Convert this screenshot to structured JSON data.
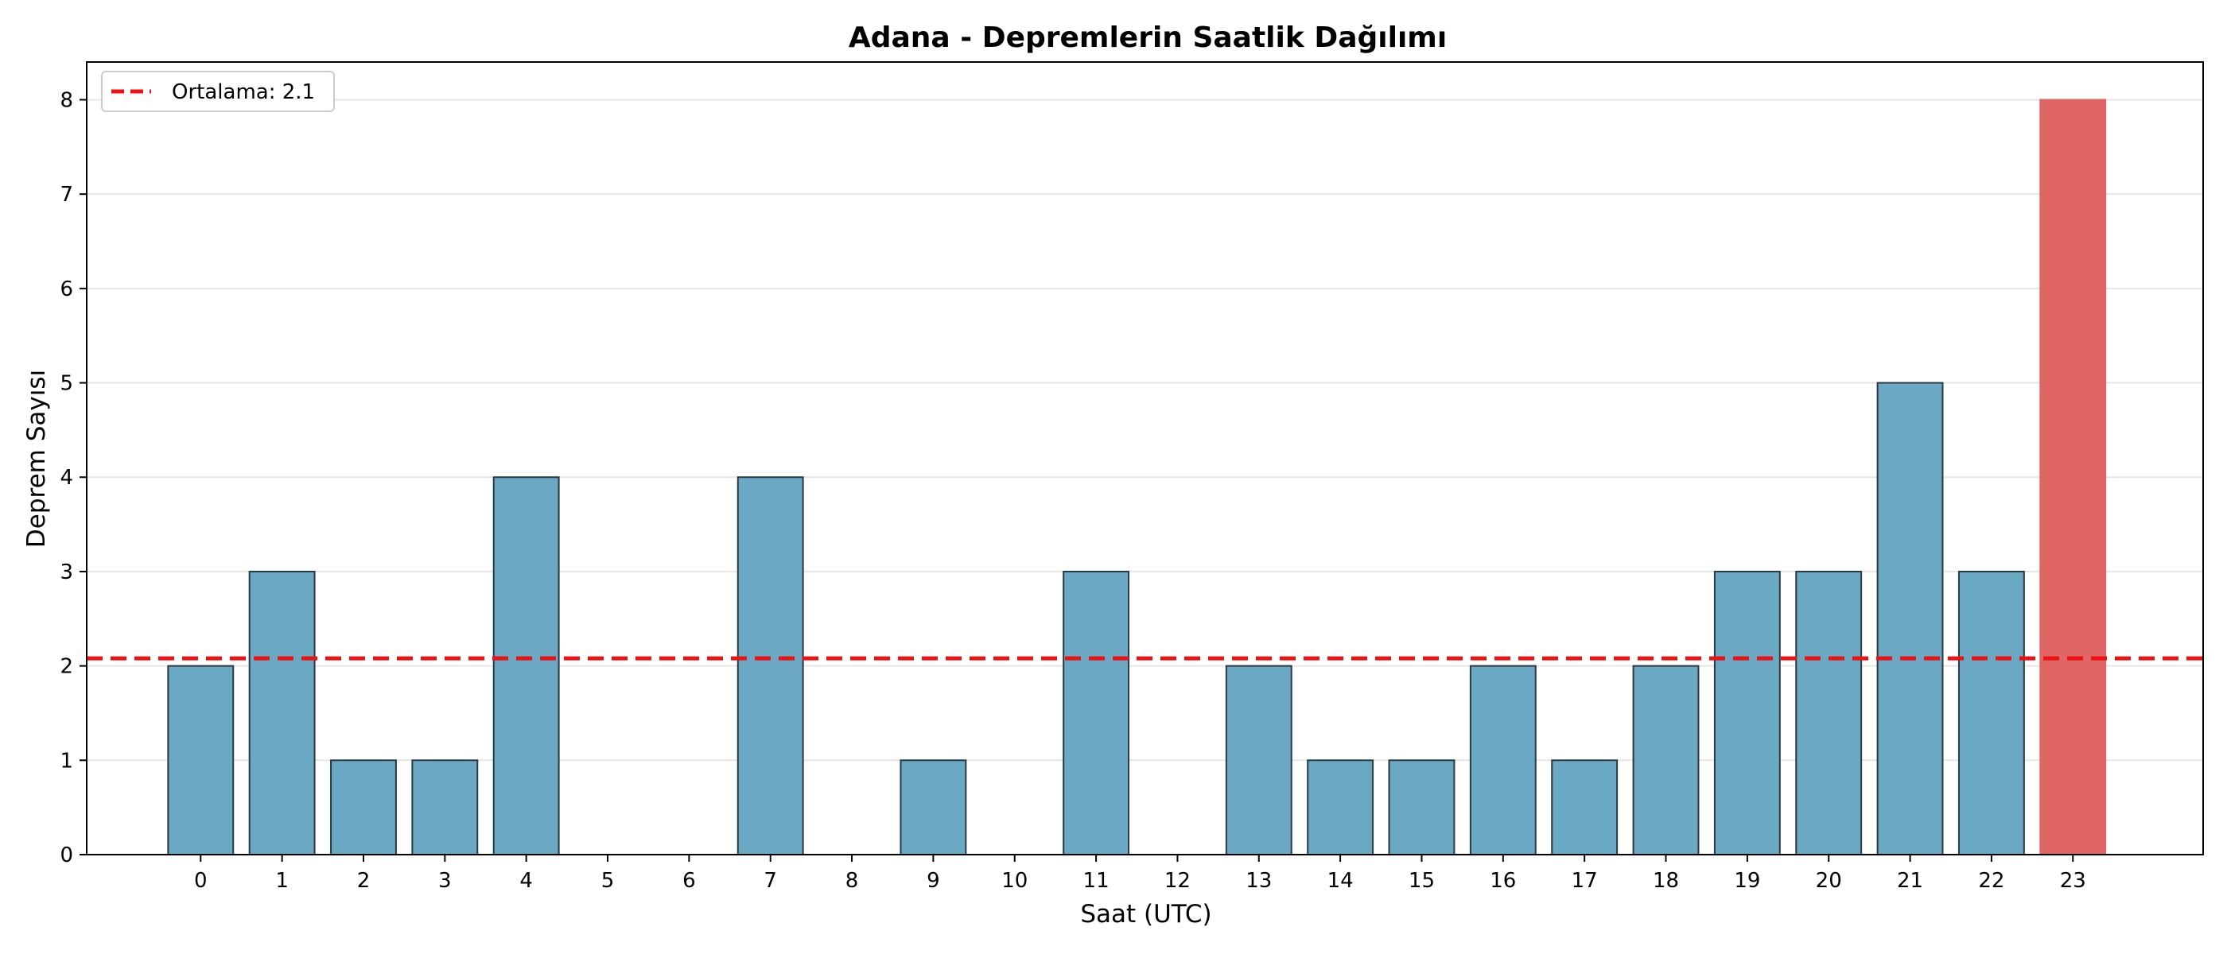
{
  "chart_data": {
    "type": "bar",
    "title": "Adana - Depremlerin Saatlik Dağılımı",
    "xlabel": "Saat (UTC)",
    "ylabel": "Deprem Sayısı",
    "categories": [
      "0",
      "1",
      "2",
      "3",
      "4",
      "5",
      "6",
      "7",
      "8",
      "9",
      "10",
      "11",
      "12",
      "13",
      "14",
      "15",
      "16",
      "17",
      "18",
      "19",
      "20",
      "21",
      "22",
      "23"
    ],
    "values": [
      2,
      3,
      1,
      1,
      4,
      0,
      0,
      4,
      0,
      1,
      0,
      3,
      0,
      2,
      1,
      1,
      2,
      1,
      2,
      3,
      3,
      5,
      3,
      8
    ],
    "highlight_category": "23",
    "ylim": [
      0,
      8.4
    ],
    "yticks": [
      0,
      1,
      2,
      3,
      4,
      5,
      6,
      7,
      8
    ],
    "grid": "y",
    "legend_position": "top-left",
    "mean_line": {
      "value": 2.08,
      "label": "Ortalama: 2.1"
    },
    "colors": {
      "bar": "#6aa8c4",
      "bar_highlight": "#e06666",
      "bar_edge": "#2b3a42",
      "mean_line": "#ee1111",
      "grid": "#e6e6e6"
    }
  }
}
